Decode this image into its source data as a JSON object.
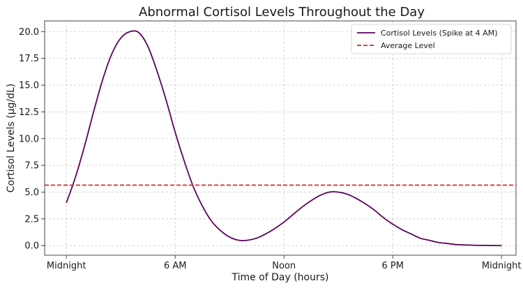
{
  "chart_data": {
    "type": "line",
    "title": "Abnormal Cortisol Levels Throughout the Day",
    "xlabel": "Time of Day (hours)",
    "ylabel": "Cortisol Levels (µg/dL)",
    "xlim": [
      -1.2,
      24.8
    ],
    "ylim": [
      -0.9,
      21.0
    ],
    "grid": true,
    "legend_position": "top-right",
    "x_ticks": [
      {
        "value": 0,
        "label": "Midnight"
      },
      {
        "value": 6,
        "label": "6 AM"
      },
      {
        "value": 12,
        "label": "Noon"
      },
      {
        "value": 18,
        "label": "6 PM"
      },
      {
        "value": 24,
        "label": "Midnight"
      }
    ],
    "y_ticks": [
      {
        "value": 0,
        "label": "0.0"
      },
      {
        "value": 2.5,
        "label": "2.5"
      },
      {
        "value": 5,
        "label": "5.0"
      },
      {
        "value": 7.5,
        "label": "7.5"
      },
      {
        "value": 10,
        "label": "10.0"
      },
      {
        "value": 12.5,
        "label": "12.5"
      },
      {
        "value": 15,
        "label": "15.0"
      },
      {
        "value": 17.5,
        "label": "17.5"
      },
      {
        "value": 20,
        "label": "20.0"
      }
    ],
    "series": [
      {
        "name": "Cortisol Levels (Spike at 4 AM)",
        "color": "#5c005c",
        "style": "solid",
        "x": [
          0,
          0.5,
          1,
          1.5,
          2,
          2.5,
          3,
          3.5,
          4,
          4.5,
          5,
          5.5,
          6,
          6.5,
          7,
          7.5,
          8,
          8.5,
          9,
          9.5,
          10,
          10.5,
          11,
          11.5,
          12,
          12.5,
          13,
          13.5,
          14,
          14.5,
          15,
          15.5,
          16,
          16.5,
          17,
          17.5,
          18,
          18.5,
          19,
          19.5,
          20,
          20.5,
          21,
          21.5,
          22,
          22.5,
          23,
          23.5,
          24
        ],
        "y": [
          4.0,
          6.4,
          9.3,
          12.5,
          15.5,
          17.9,
          19.4,
          20.0,
          19.9,
          18.6,
          16.3,
          13.6,
          10.6,
          7.9,
          5.5,
          3.7,
          2.3,
          1.4,
          0.8,
          0.5,
          0.5,
          0.7,
          1.1,
          1.6,
          2.2,
          2.9,
          3.6,
          4.2,
          4.7,
          5.0,
          5.0,
          4.8,
          4.4,
          3.9,
          3.3,
          2.6,
          2.0,
          1.5,
          1.1,
          0.7,
          0.5,
          0.3,
          0.2,
          0.1,
          0.06,
          0.03,
          0.02,
          0.01,
          0.0
        ]
      },
      {
        "name": "Average Level",
        "color": "#d62728",
        "style": "dashed",
        "x": [
          -1.2,
          24.8
        ],
        "y": [
          5.65,
          5.65
        ]
      }
    ]
  }
}
